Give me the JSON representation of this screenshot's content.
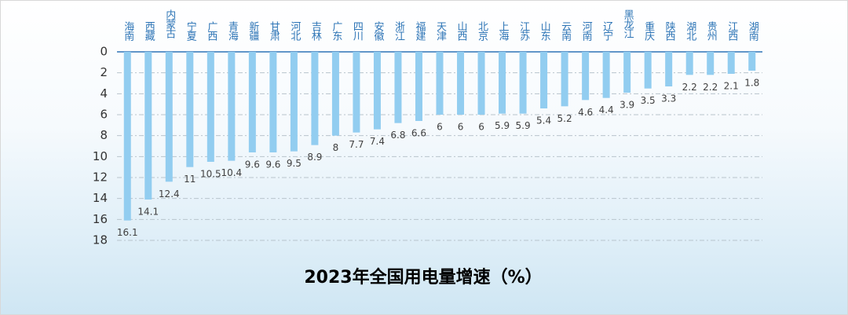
{
  "chart_data": {
    "type": "bar",
    "title": "2023年全国用电量增速（%）",
    "categories": [
      "海南",
      "西藏",
      "内蒙古",
      "宁夏",
      "广西",
      "青海",
      "新疆",
      "甘肃",
      "河北",
      "吉林",
      "广东",
      "四川",
      "安徽",
      "浙江",
      "福建",
      "天津",
      "山西",
      "北京",
      "上海",
      "江苏",
      "山东",
      "云南",
      "河南",
      "辽宁",
      "黑龙江",
      "重庆",
      "陕西",
      "湖北",
      "贵州",
      "江西",
      "湖南"
    ],
    "values": [
      16.1,
      14.1,
      12.4,
      11,
      10.5,
      10.4,
      9.6,
      9.6,
      9.5,
      8.9,
      8,
      7.7,
      7.4,
      6.8,
      6.6,
      6,
      6,
      6,
      5.9,
      5.9,
      5.4,
      5.2,
      4.6,
      4.4,
      3.9,
      3.5,
      3.3,
      2.2,
      2.2,
      2.1,
      1.8
    ],
    "color": "#92cdf0",
    "ylim": [
      0,
      18
    ],
    "yticks": [
      0,
      2,
      4,
      6,
      8,
      10,
      12,
      14,
      16,
      18
    ],
    "y_inverted": true,
    "grid": true
  }
}
